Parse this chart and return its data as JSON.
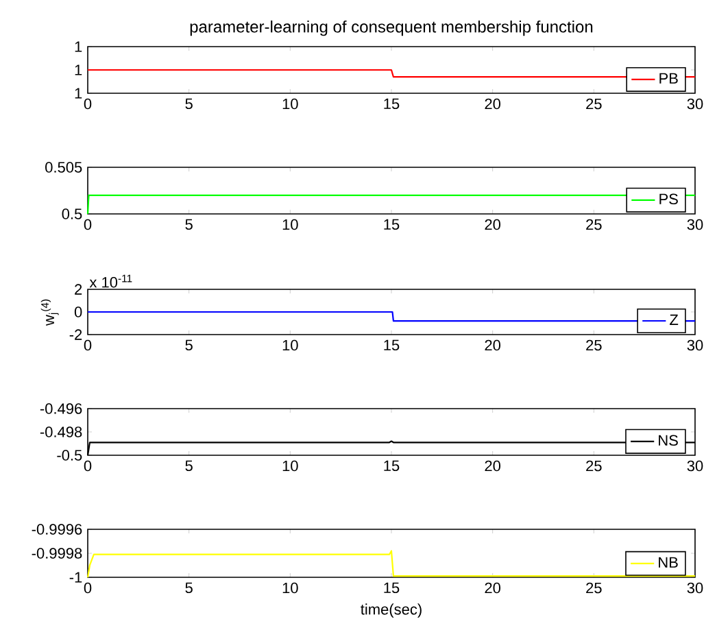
{
  "chart_data": [
    {
      "type": "line",
      "title": "parameter-learning of consequent membership function",
      "xlim": [
        0,
        30
      ],
      "xticks": [
        0,
        5,
        10,
        15,
        20,
        25,
        30
      ],
      "ylim": [
        0.9999,
        1.0001
      ],
      "yticks": [
        {
          "value": 0.9999,
          "label": "1"
        },
        {
          "value": 1,
          "label": "1"
        },
        {
          "value": 1.0001,
          "label": "1"
        }
      ],
      "legend": "bottom right",
      "series": [
        {
          "name": "PB",
          "color": "#ff0000",
          "x": [
            0,
            15,
            15.1,
            30
          ],
          "values": [
            1,
            1,
            0.99997,
            0.99997
          ]
        }
      ]
    },
    {
      "type": "line",
      "xlim": [
        0,
        30
      ],
      "xticks": [
        0,
        5,
        10,
        15,
        20,
        25,
        30
      ],
      "ylim": [
        0.5,
        0.505
      ],
      "yticks": [
        0.5,
        0.505
      ],
      "legend": "bottom right",
      "series": [
        {
          "name": "PS",
          "color": "#00ff00",
          "x": [
            0,
            0.05,
            30
          ],
          "values": [
            0.5,
            0.502,
            0.502
          ]
        }
      ]
    },
    {
      "type": "line",
      "ylabel": "w$_{j}$$^{(4)}$",
      "annotations": [
        "x 10$^{-11}$"
      ],
      "xlim": [
        0,
        30
      ],
      "xticks": [
        0,
        5,
        10,
        15,
        20,
        25,
        30
      ],
      "ylim": [
        -2,
        2
      ],
      "yticks": [
        -2,
        0,
        2
      ],
      "legend": "bottom right",
      "series": [
        {
          "name": "Z",
          "color": "#0000ff",
          "x": [
            0,
            15.05,
            15.1,
            30
          ],
          "values": [
            0,
            0,
            -0.8,
            -0.8
          ]
        }
      ]
    },
    {
      "type": "line",
      "xlim": [
        0,
        30
      ],
      "xticks": [
        0,
        5,
        10,
        15,
        20,
        25,
        30
      ],
      "ylim": [
        -0.5,
        -0.496
      ],
      "yticks": [
        -0.5,
        -0.498,
        -0.496
      ],
      "legend": "bottom right",
      "series": [
        {
          "name": "NS",
          "color": "#000000",
          "x": [
            0,
            0.1,
            14.9,
            15,
            15.1,
            30
          ],
          "values": [
            -0.5,
            -0.4989,
            -0.4989,
            -0.4988,
            -0.4989,
            -0.4989
          ]
        }
      ]
    },
    {
      "type": "line",
      "xlabel": "time(sec)",
      "xlim": [
        0,
        30
      ],
      "xticks": [
        0,
        5,
        10,
        15,
        20,
        25,
        30
      ],
      "ylim": [
        -1,
        -0.9996
      ],
      "yticks": [
        -1,
        -0.9998,
        -0.9996
      ],
      "legend": "bottom right",
      "series": [
        {
          "name": "NB",
          "color": "#ffff00",
          "x": [
            0,
            0.1,
            0.3,
            14.9,
            15,
            15.1,
            30
          ],
          "values": [
            -1,
            -0.9999,
            -0.99981,
            -0.99981,
            -0.99978,
            -0.99999,
            -0.99999
          ]
        }
      ]
    }
  ]
}
